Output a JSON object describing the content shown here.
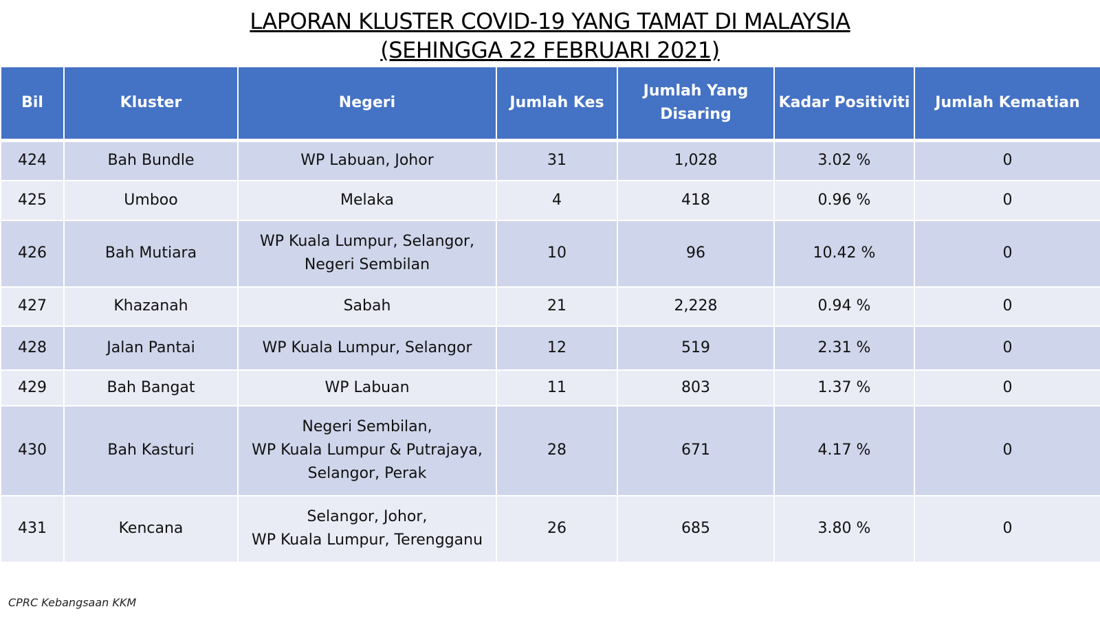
{
  "header": {
    "title": [
      "LAPORAN KLUSTER COVID-19 YANG TAMAT DI MALAYSIA",
      "(SEHINGGA 22 FEBRUARI 2021)"
    ]
  },
  "table": {
    "columns": [
      "Bil",
      "Kluster",
      "Negeri",
      "Jumlah Kes",
      "Jumlah Yang Disaring",
      "Kadar Positiviti",
      "Jumlah Kematian"
    ],
    "rows": [
      [
        "424",
        "Bah Bundle",
        [
          "WP Labuan, Johor"
        ],
        "31",
        "1,028",
        "3.02 %",
        "0"
      ],
      [
        "425",
        "Umboo",
        [
          "Melaka"
        ],
        "4",
        "418",
        "0.96 %",
        "0"
      ],
      [
        "426",
        "Bah Mutiara",
        [
          "WP Kuala Lumpur, Selangor,",
          "Negeri Sembilan"
        ],
        "10",
        "96",
        "10.42 %",
        "0"
      ],
      [
        "427",
        "Khazanah",
        [
          "Sabah"
        ],
        "21",
        "2,228",
        "0.94 %",
        "0"
      ],
      [
        "428",
        "Jalan Pantai",
        [
          "WP Kuala Lumpur, Selangor"
        ],
        "12",
        "519",
        "2.31 %",
        "0"
      ],
      [
        "429",
        "Bah Bangat",
        [
          "WP Labuan"
        ],
        "11",
        "803",
        "1.37 %",
        "0"
      ],
      [
        "430",
        "Bah Kasturi",
        [
          "Negeri Sembilan,",
          "WP Kuala Lumpur & Putrajaya,",
          "Selangor, Perak"
        ],
        "28",
        "671",
        "4.17 %",
        "0"
      ],
      [
        "431",
        "Kencana",
        [
          "Selangor, Johor,",
          "WP Kuala Lumpur, Terengganu"
        ],
        "26",
        "685",
        "3.80 %",
        "0"
      ]
    ]
  },
  "footer": {
    "source": "CPRC Kebangsaan KKM"
  }
}
